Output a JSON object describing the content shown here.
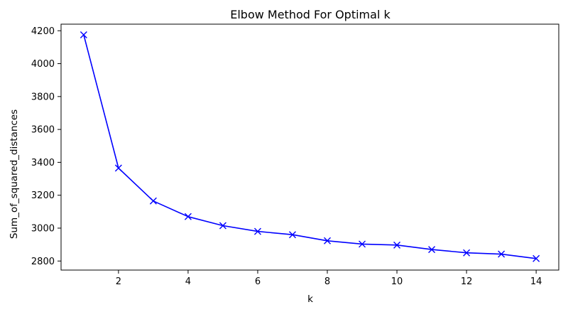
{
  "chart_data": {
    "type": "line",
    "title": "Elbow Method For Optimal k",
    "xlabel": "k",
    "ylabel": "Sum_of_squared_distances",
    "x": [
      1,
      2,
      3,
      4,
      5,
      6,
      7,
      8,
      9,
      10,
      11,
      12,
      13,
      14
    ],
    "series": [
      {
        "values": [
          4175,
          3365,
          3165,
          3070,
          3015,
          2980,
          2960,
          2923,
          2903,
          2897,
          2870,
          2850,
          2842,
          2815
        ],
        "color": "#0000ff",
        "marker": "x",
        "line": "solid"
      }
    ],
    "xticks": [
      2,
      4,
      6,
      8,
      10,
      12,
      14
    ],
    "yticks": [
      2800,
      3000,
      3200,
      3400,
      3600,
      3800,
      4000,
      4200
    ],
    "xlim": [
      0.35,
      14.65
    ],
    "ylim": [
      2745,
      4240
    ],
    "grid": false,
    "legend": "none"
  }
}
